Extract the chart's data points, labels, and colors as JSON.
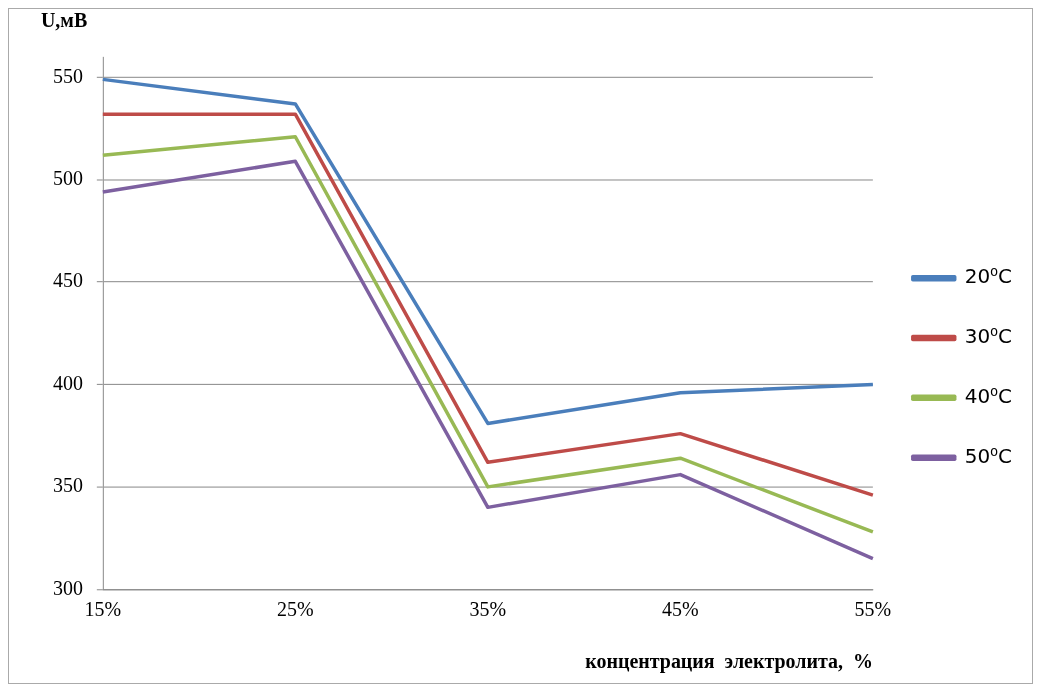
{
  "chart_data": {
    "type": "line",
    "xlabel": "концентрация  электролита,  %",
    "ylabel": "U,мВ",
    "categories": [
      "15%",
      "25%",
      "35%",
      "45%",
      "55%"
    ],
    "series": [
      {
        "name": "20⁰C",
        "color": "#4a7ebb",
        "values": [
          549,
          537,
          381,
          396,
          400
        ]
      },
      {
        "name": "30⁰C",
        "color": "#be4b48",
        "values": [
          532,
          532,
          362,
          376,
          346
        ]
      },
      {
        "name": "40⁰C",
        "color": "#98b954",
        "values": [
          512,
          521,
          350,
          364,
          328
        ]
      },
      {
        "name": "50⁰C",
        "color": "#7d60a0",
        "values": [
          494,
          509,
          340,
          356,
          315
        ]
      }
    ],
    "ylim": [
      300,
      560
    ],
    "yticks": [
      300,
      350,
      400,
      450,
      500,
      550
    ],
    "grid": "y",
    "legend": "right",
    "marker": "none",
    "line_style": "solid"
  }
}
